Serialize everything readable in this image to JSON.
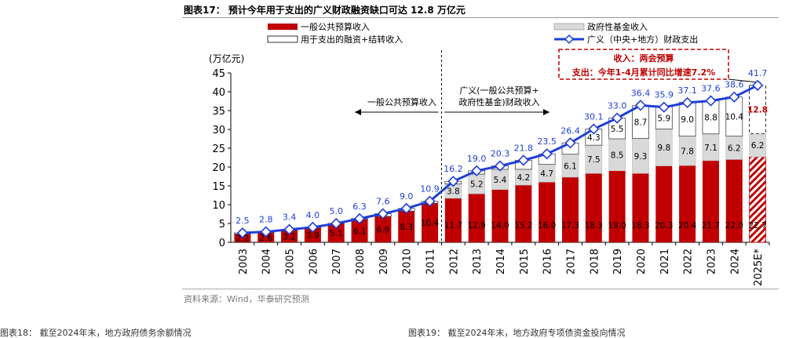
{
  "figure_title": "图表17： 预计今年用于支出的广义财政融资缺口可达 12.8 万亿元",
  "source_note": "资料来源：Wind，华泰研究预测",
  "bottom_captions": [
    "图表18： 截至2024年末，地方政府债务余额情况",
    "图表19： 截至2024年末，地方政府专项债资金投向情况"
  ],
  "colors": {
    "general_budget": "#C00000",
    "gov_fund": "#D9D9D9",
    "financing": "#FFFFFF",
    "line": "#1F3FD8",
    "annotation_box": "#C00000"
  },
  "chart_data": {
    "type": "bar",
    "stacked": true,
    "title": "预计今年用于支出的广义财政融资缺口可达 12.8 万亿元",
    "ylabel": "(万亿元)",
    "ylim": [
      0,
      45
    ],
    "yticks": [
      0,
      5,
      10,
      15,
      20,
      25,
      30,
      35,
      40,
      45
    ],
    "grid": false,
    "legend_position": "top",
    "categories": [
      "2003",
      "2004",
      "2005",
      "2006",
      "2007",
      "2008",
      "2009",
      "2010",
      "2011",
      "2012",
      "2013",
      "2014",
      "2015",
      "2016",
      "2017",
      "2018",
      "2019",
      "2020",
      "2021",
      "2022",
      "2023",
      "2024",
      "2025E*"
    ],
    "series": [
      {
        "name": "一般公共预算收入",
        "kind": "bar",
        "values": [
          2.2,
          2.6,
          3.2,
          3.9,
          5.1,
          6.1,
          6.9,
          8.3,
          10.4,
          11.7,
          12.9,
          14.0,
          15.2,
          16.0,
          17.3,
          18.3,
          19.0,
          18.3,
          20.3,
          20.4,
          21.7,
          22.0,
          22.7
        ]
      },
      {
        "name": "政府性基金收入",
        "kind": "bar",
        "values": [
          null,
          null,
          null,
          null,
          null,
          null,
          null,
          null,
          null,
          3.8,
          5.2,
          5.4,
          4.2,
          4.7,
          6.1,
          7.5,
          8.5,
          9.3,
          9.8,
          7.8,
          7.1,
          6.2,
          6.2
        ]
      },
      {
        "name": "用于支出的融资+结转收入",
        "kind": "bar",
        "values": [
          0.3,
          0.2,
          0.2,
          0.1,
          -0.1,
          0.2,
          0.7,
          0.7,
          0.5,
          0.7,
          0.9,
          0.9,
          2.4,
          2.8,
          3.0,
          4.3,
          5.5,
          8.7,
          5.9,
          9.0,
          8.8,
          10.4,
          12.8
        ]
      },
      {
        "name": "广义（中央+地方）财政支出",
        "kind": "line",
        "values": [
          2.5,
          2.8,
          3.4,
          4.0,
          5.0,
          6.3,
          7.6,
          9.0,
          10.9,
          16.2,
          19.0,
          20.3,
          21.8,
          23.5,
          26.4,
          30.1,
          33.0,
          36.4,
          35.9,
          37.1,
          37.6,
          38.6,
          41.7
        ]
      }
    ],
    "bar_labels": {
      "general_budget": [
        "2.2",
        "2.6",
        "3.2",
        "3.9",
        "5.1",
        "6.1",
        "6.9",
        "8.3",
        "10.4",
        "11.7",
        "12.9",
        "14.0",
        "15.2",
        "16.0",
        "17.3",
        "18.3",
        "19.0",
        "18.3",
        "20.3",
        "20.4",
        "21.7",
        "22.0",
        "22.7"
      ],
      "gov_fund": [
        "",
        "",
        "",
        "",
        "",
        "",
        "",
        "",
        "",
        "3.8",
        "5.2",
        "5.4",
        "4.2",
        "4.7",
        "6.1",
        "7.5",
        "8.5",
        "9.3",
        "9.8",
        "7.8",
        "7.1",
        "6.2",
        "6.2"
      ],
      "financing": [
        "",
        "",
        "",
        "",
        "",
        "",
        "",
        "",
        "",
        "",
        "",
        "",
        "",
        "",
        "",
        "4.3",
        "5.5",
        "8.7",
        "5.9",
        "9.0",
        "8.8",
        "10.4",
        "12.8"
      ]
    },
    "line_labels": [
      "2.5",
      "2.8",
      "3.4",
      "4.0",
      "5.0",
      "6.3",
      "7.6",
      "9.0",
      "10.9",
      "16.2",
      "19.0",
      "20.3",
      "21.8",
      "23.5",
      "26.4",
      "30.1",
      "33.0",
      "36.4",
      "35.9",
      "37.1",
      "37.6",
      "38.6",
      "41.7"
    ],
    "annotations": {
      "left_region": "一般公共预算收入",
      "right_region_line1": "广义(一般公共预算+",
      "right_region_line2": "政府性基金)财政收入",
      "box_line1": "收入：两会预算",
      "box_line2": "支出：今年1-4月累计同比增速7.2%"
    }
  }
}
